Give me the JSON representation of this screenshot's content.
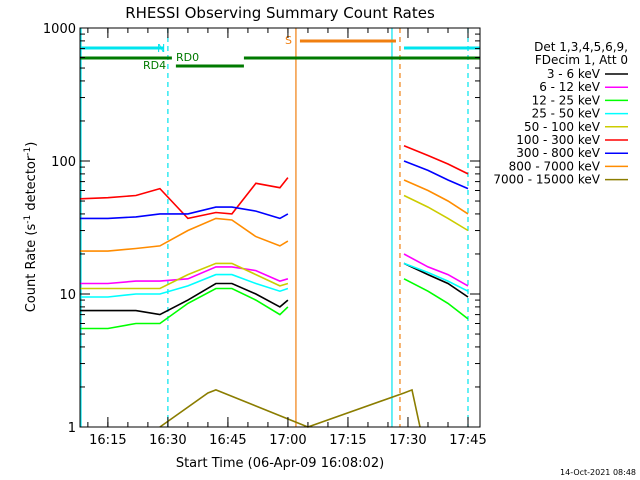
{
  "chart_data": {
    "type": "line",
    "title": "RHESSI Observing Summary Count Rates",
    "xlabel": "Start Time (06-Apr-09 16:08:02)",
    "ylabel": "Count Rate (s",
    "ylabel_sup1": "-1",
    "ylabel_mid": " detector",
    "ylabel_sup2": "-1",
    "ylabel_end": ")",
    "yscale": "log",
    "xlim": [
      "16:08:02",
      "17:48:00"
    ],
    "ylim": [
      1,
      1000
    ],
    "xticks": [
      "16:15",
      "16:30",
      "16:45",
      "17:00",
      "17:15",
      "17:30",
      "17:45"
    ],
    "yticks": [
      "1",
      "10",
      "100",
      "1000"
    ],
    "grid": false,
    "legend_placement": "right",
    "legend_header": [
      "Det 1,3,4,5,6,9,",
      "FDecim 1, Att 0"
    ],
    "timestamp": "14-Oct-2021 08:48",
    "flags": [
      {
        "label": "N",
        "color": "#00e5ee",
        "segments": [
          [
            "16:08",
            "16:29"
          ],
          [
            "17:29",
            "17:48"
          ]
        ]
      },
      {
        "label": "S",
        "color": "#f07f10",
        "segments": [
          [
            "17:03",
            "17:27"
          ]
        ]
      },
      {
        "label": "RD0",
        "color": "#007a00",
        "segments": [
          [
            "16:32",
            "16:49"
          ]
        ]
      },
      {
        "label": "RD4",
        "color": "#007a00",
        "segments": [
          [
            "16:08",
            "16:31"
          ],
          [
            "16:49",
            "17:48"
          ]
        ]
      }
    ],
    "vlines": [
      {
        "t": "16:30",
        "color": "#00e5ee",
        "style": "dashed"
      },
      {
        "t": "17:26",
        "color": "#00e5ee",
        "style": "solid"
      },
      {
        "t": "17:02",
        "color": "#f07f10",
        "style": "solid"
      },
      {
        "t": "17:28",
        "color": "#f07f10",
        "style": "dashed"
      },
      {
        "t": "17:45",
        "color": "#00e5ee",
        "style": "dashed"
      }
    ],
    "series": [
      {
        "name": "3 - 6 keV",
        "color": "#000000",
        "x": [
          "16:08",
          "16:15",
          "16:22",
          "16:28",
          "16:35",
          "16:42",
          "16:46",
          "16:52",
          "16:58",
          "17:00",
          "17:29",
          "17:35",
          "17:40",
          "17:45"
        ],
        "values": [
          7.5,
          7.5,
          7.5,
          7.0,
          9.0,
          12,
          12,
          10,
          8,
          9,
          17,
          14,
          12,
          9.5
        ]
      },
      {
        "name": "6 - 12 keV",
        "color": "#ff00ff",
        "x": [
          "16:08",
          "16:15",
          "16:22",
          "16:28",
          "16:35",
          "16:42",
          "16:46",
          "16:52",
          "16:58",
          "17:00",
          "17:29",
          "17:35",
          "17:40",
          "17:45"
        ],
        "values": [
          12,
          12,
          12.5,
          12.5,
          13,
          16,
          16,
          15,
          12.5,
          13,
          20,
          16,
          14,
          11.5
        ]
      },
      {
        "name": "12 - 25 keV",
        "color": "#00ff00",
        "x": [
          "16:08",
          "16:15",
          "16:22",
          "16:28",
          "16:35",
          "16:42",
          "16:46",
          "16:52",
          "16:58",
          "17:00",
          "17:29",
          "17:35",
          "17:40",
          "17:45"
        ],
        "values": [
          5.5,
          5.5,
          6,
          6,
          8.5,
          11,
          11,
          9,
          7,
          8,
          13,
          10.5,
          8.5,
          6.5
        ]
      },
      {
        "name": "25 - 50 keV",
        "color": "#00ffff",
        "x": [
          "16:08",
          "16:15",
          "16:22",
          "16:28",
          "16:35",
          "16:42",
          "16:46",
          "16:52",
          "16:58",
          "17:00",
          "17:29",
          "17:35",
          "17:40",
          "17:45"
        ],
        "values": [
          9.5,
          9.5,
          10,
          10,
          11.5,
          14,
          14,
          12,
          10.5,
          11,
          17,
          14.5,
          12.5,
          10.5
        ]
      },
      {
        "name": "50 - 100 keV",
        "color": "#cccc00",
        "x": [
          "16:08",
          "16:15",
          "16:22",
          "16:28",
          "16:35",
          "16:42",
          "16:46",
          "16:52",
          "16:58",
          "17:00",
          "17:29",
          "17:35",
          "17:40",
          "17:45"
        ],
        "values": [
          11,
          11,
          11,
          11,
          14,
          17,
          17,
          14,
          11.5,
          12,
          55,
          45,
          37,
          30
        ]
      },
      {
        "name": "100 - 300 keV",
        "color": "#ff0000",
        "x": [
          "16:08",
          "16:15",
          "16:22",
          "16:28",
          "16:35",
          "16:42",
          "16:46",
          "16:52",
          "16:58",
          "17:00",
          "17:29",
          "17:35",
          "17:40",
          "17:45"
        ],
        "values": [
          52,
          53,
          55,
          62,
          37,
          41,
          40,
          68,
          63,
          75,
          130,
          110,
          95,
          80
        ]
      },
      {
        "name": "300 - 800 keV",
        "color": "#0000ff",
        "x": [
          "16:08",
          "16:15",
          "16:22",
          "16:28",
          "16:35",
          "16:42",
          "16:46",
          "16:52",
          "16:58",
          "17:00",
          "17:29",
          "17:35",
          "17:40",
          "17:45"
        ],
        "values": [
          37,
          37,
          38,
          40,
          40,
          45,
          45,
          42,
          37,
          40,
          100,
          85,
          72,
          62
        ]
      },
      {
        "name": "800 - 7000 keV",
        "color": "#ff8c00",
        "x": [
          "16:08",
          "16:15",
          "16:22",
          "16:28",
          "16:35",
          "16:42",
          "16:46",
          "16:52",
          "16:58",
          "17:00",
          "17:29",
          "17:35",
          "17:40",
          "17:45"
        ],
        "values": [
          21,
          21,
          22,
          23,
          30,
          37,
          36,
          27,
          23,
          25,
          72,
          60,
          50,
          40
        ]
      },
      {
        "name": "7000 - 15000 keV",
        "color": "#8b7d00",
        "x": [
          "16:28",
          "16:40",
          "16:42",
          "17:05",
          "17:29",
          "17:31",
          "17:33"
        ],
        "values": [
          1,
          1.8,
          1.9,
          1,
          1.8,
          1.9,
          1
        ]
      }
    ]
  }
}
